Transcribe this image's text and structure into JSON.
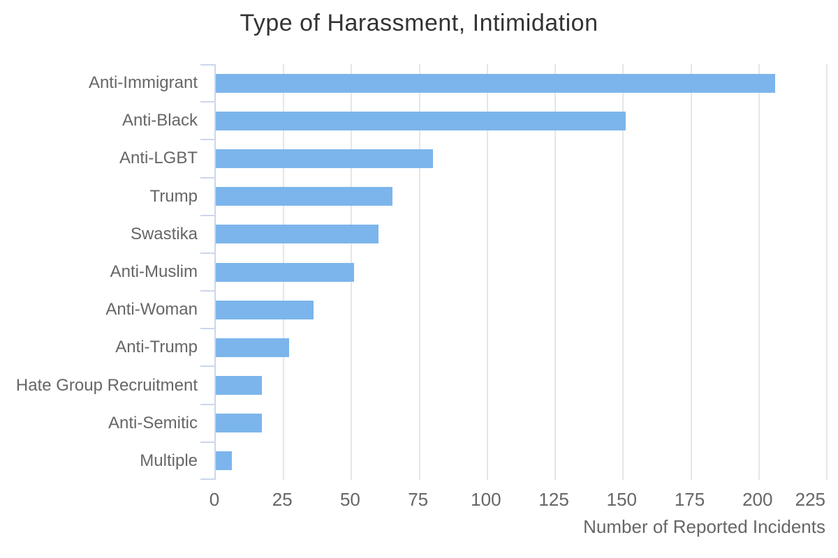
{
  "chart_data": {
    "type": "bar",
    "orientation": "horizontal",
    "title": "Type of Harassment, Intimidation",
    "xlabel": "Number of Reported Incidents",
    "ylabel": "",
    "categories": [
      "Anti-Immigrant",
      "Anti-Black",
      "Anti-LGBT",
      "Trump",
      "Swastika",
      "Anti-Muslim",
      "Anti-Woman",
      "Anti-Trump",
      "Hate Group Recruitment",
      "Anti-Semitic",
      "Multiple"
    ],
    "values": [
      206,
      151,
      80,
      65,
      60,
      51,
      36,
      27,
      17,
      17,
      6
    ],
    "xlim": [
      0,
      225
    ],
    "xticks": [
      0,
      25,
      50,
      75,
      100,
      125,
      150,
      175,
      200,
      225
    ],
    "grid": true,
    "legend": false,
    "colors": {
      "bar": "#7cb5ec",
      "grid": "#e6e6e6",
      "axis_line": "#ccd6eb",
      "title_text": "#333333",
      "label_text": "#666666"
    }
  }
}
